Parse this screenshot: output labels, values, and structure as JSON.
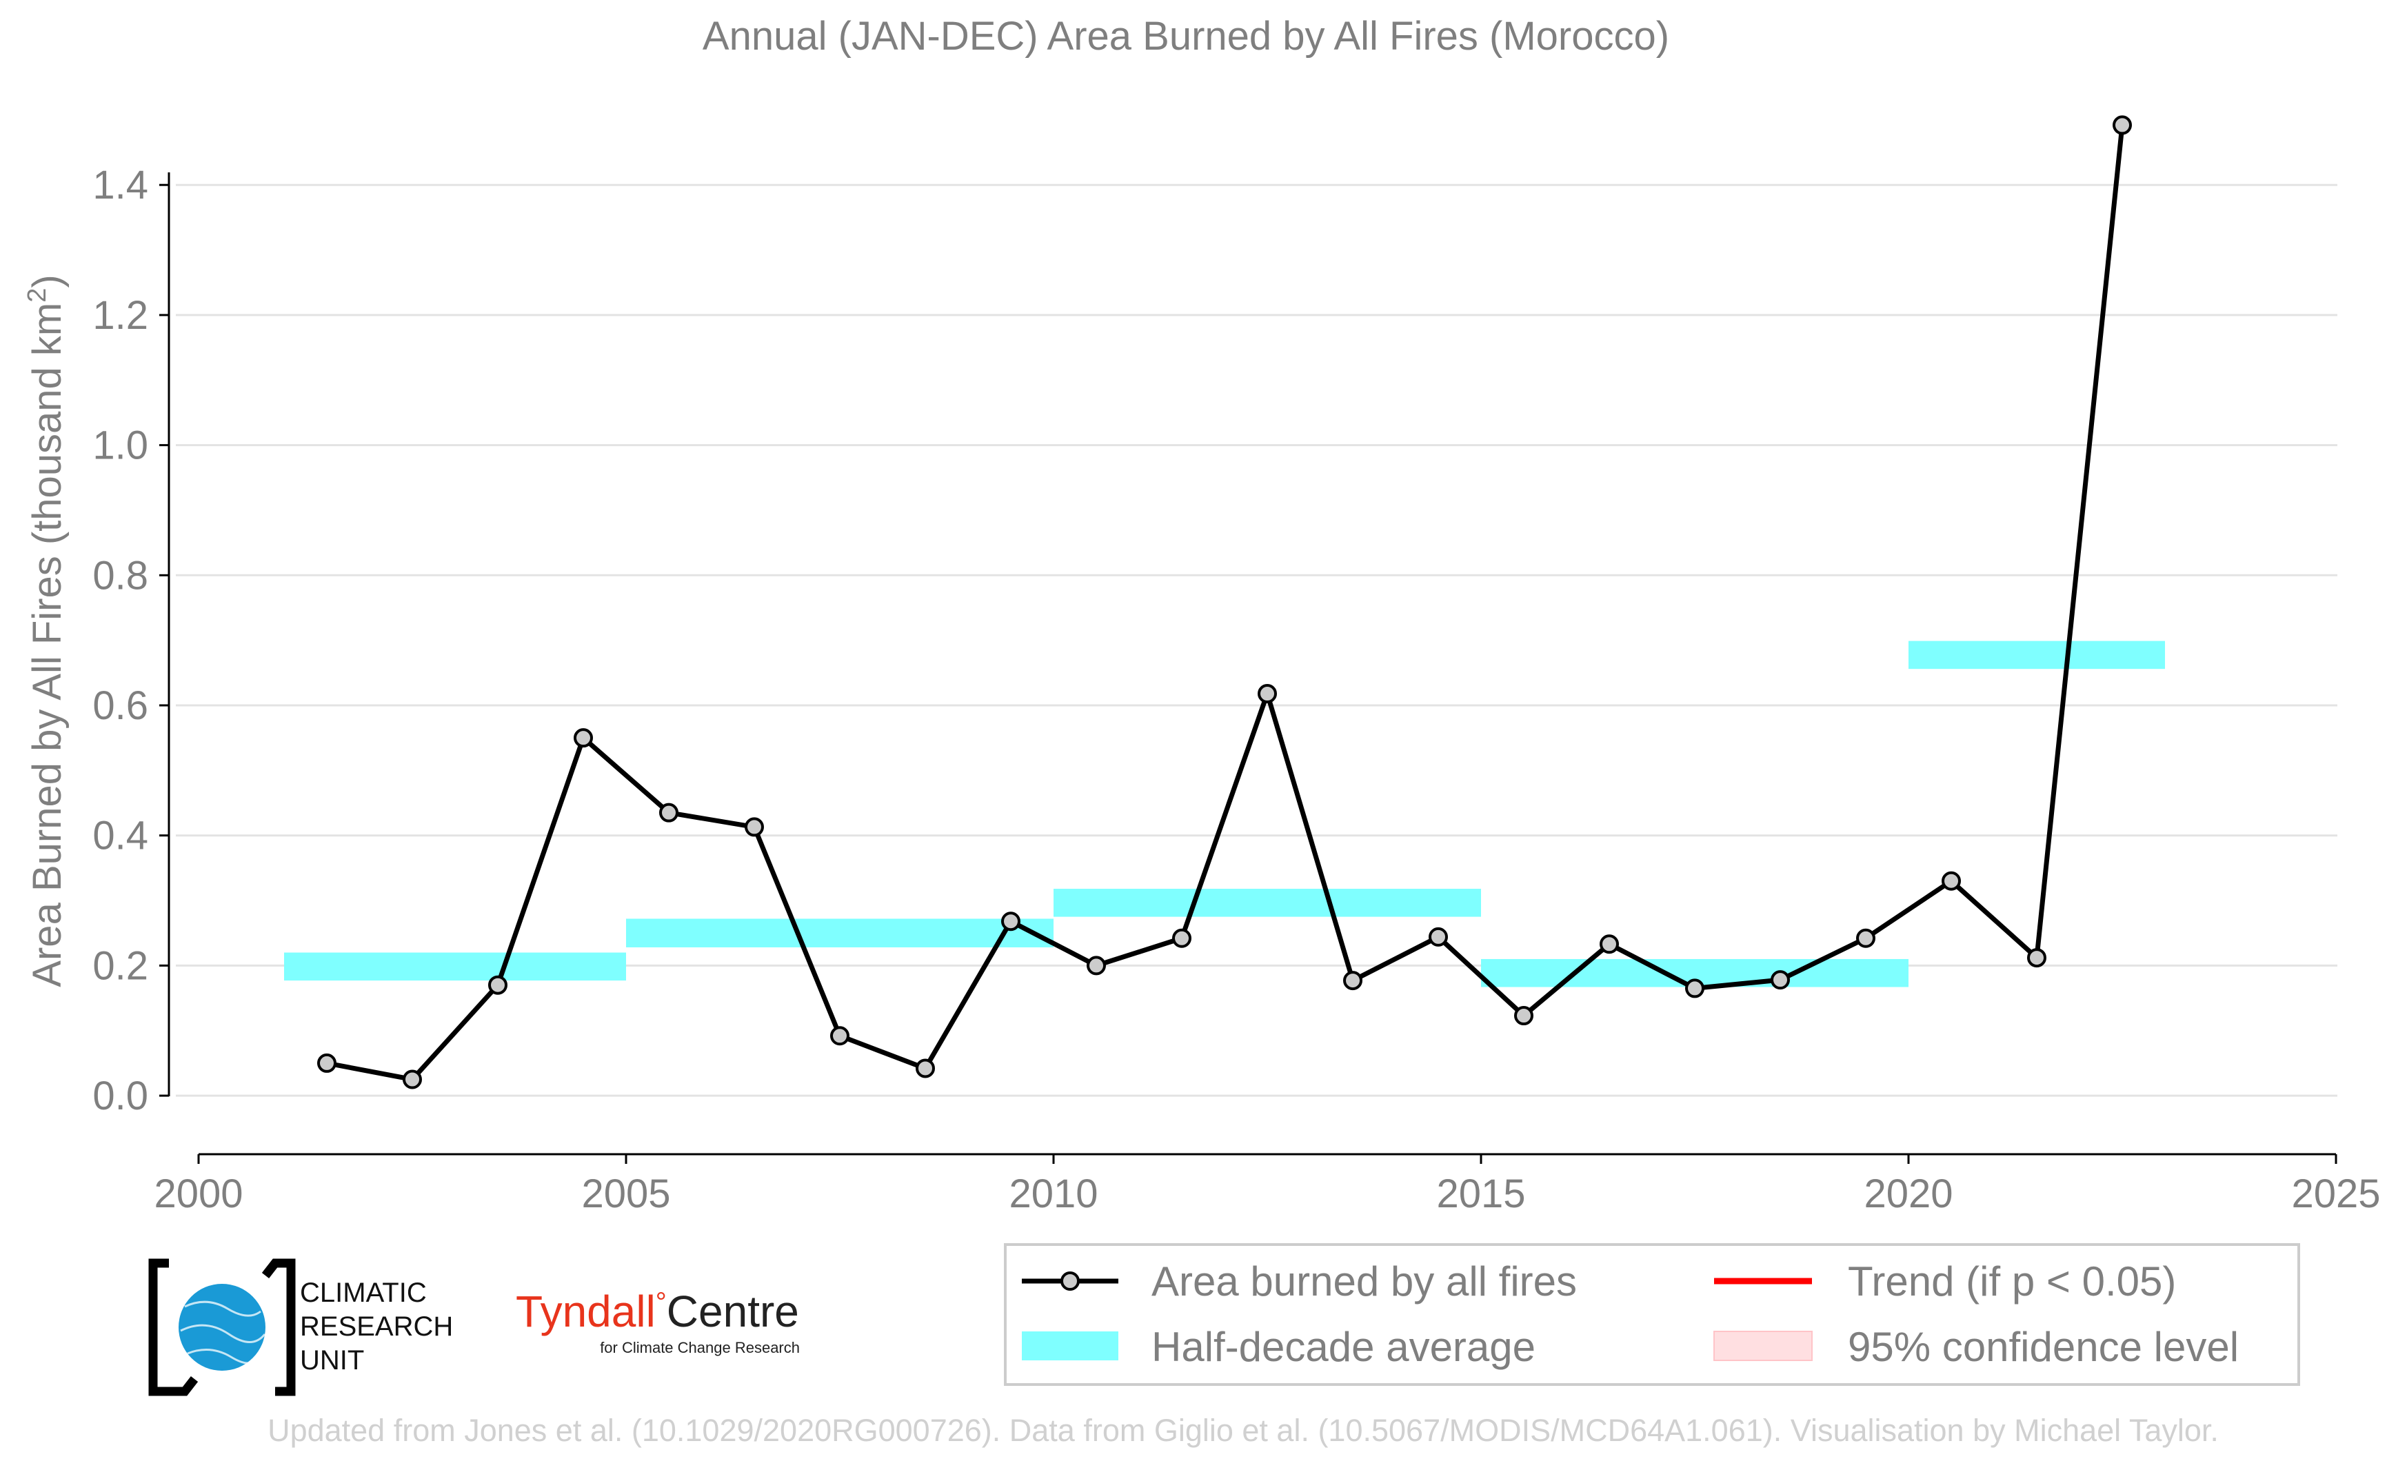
{
  "chart_data": {
    "type": "line",
    "title": "Annual (JAN-DEC) Area Burned by All Fires (Morocco)",
    "ylabel": "Area Burned by All Fires (thousand km",
    "ylabel_superscript": "2",
    "ylabel_suffix": ")",
    "xlim": [
      2000,
      2025
    ],
    "ylim": [
      -0.09,
      1.52
    ],
    "x_ticks": [
      2000,
      2005,
      2010,
      2015,
      2020,
      2025
    ],
    "y_ticks": [
      0.0,
      0.2,
      0.4,
      0.6,
      0.8,
      1.0,
      1.2,
      1.4
    ],
    "y_tick_labels": [
      "0.0",
      "0.2",
      "0.4",
      "0.6",
      "0.8",
      "1.0",
      "1.2",
      "1.4"
    ],
    "grid": "horizontal",
    "series": [
      {
        "name": "Area burned by all fires",
        "color": "#000000",
        "marker_fill": "#cccccc",
        "x": [
          2001.5,
          2002.5,
          2003.5,
          2004.5,
          2005.5,
          2006.5,
          2007.5,
          2008.5,
          2009.5,
          2010.5,
          2011.5,
          2012.5,
          2013.5,
          2014.5,
          2015.5,
          2016.5,
          2017.5,
          2018.5,
          2019.5,
          2020.5,
          2021.5,
          2022.5
        ],
        "y": [
          0.05,
          0.025,
          0.17,
          0.55,
          0.435,
          0.413,
          0.092,
          0.042,
          0.268,
          0.2,
          0.242,
          0.618,
          0.177,
          0.244,
          0.123,
          0.233,
          0.165,
          0.178,
          0.242,
          0.33,
          0.212,
          1.492
        ]
      }
    ],
    "half_decade_average": {
      "name": "Half-decade average",
      "color": "#7fffff",
      "segments": [
        {
          "x0": 2001,
          "x1": 2005,
          "y0": 0.177,
          "y1": 0.22
        },
        {
          "x0": 2005,
          "x1": 2010,
          "y0": 0.228,
          "y1": 0.272
        },
        {
          "x0": 2010,
          "x1": 2015,
          "y0": 0.275,
          "y1": 0.318
        },
        {
          "x0": 2015,
          "x1": 2020,
          "y0": 0.167,
          "y1": 0.21
        },
        {
          "x0": 2020,
          "x1": 2023,
          "y0": 0.656,
          "y1": 0.699
        }
      ]
    },
    "legend": {
      "position": "bottom-right",
      "entries": [
        {
          "label": "Area burned by all fires",
          "kind": "line-marker",
          "color": "#000000"
        },
        {
          "label": "Trend (if p < 0.05)",
          "kind": "line",
          "color": "#ff0000"
        },
        {
          "label": "Half-decade average",
          "kind": "band",
          "color": "#7fffff"
        },
        {
          "label": "95% confidence level",
          "kind": "band",
          "color": "#ffdfe1"
        }
      ]
    }
  },
  "logos": {
    "cru_line1": "CLIMATIC",
    "cru_line2": "RESEARCH",
    "cru_line3": "UNIT",
    "tyndall_main": "Tyndall",
    "tyndall_degree": "°",
    "tyndall_centre": "Centre",
    "tyndall_sub": "for Climate Change Research",
    "tyndall_color": "#e8341c",
    "cru_color": "#1a9ad6"
  },
  "footer": {
    "credit": "Updated from Jones et al. (10.1029/2020RG000726). Data from Giglio et al. (10.5067/MODIS/MCD64A1.061). Visualisation by Michael Taylor."
  }
}
